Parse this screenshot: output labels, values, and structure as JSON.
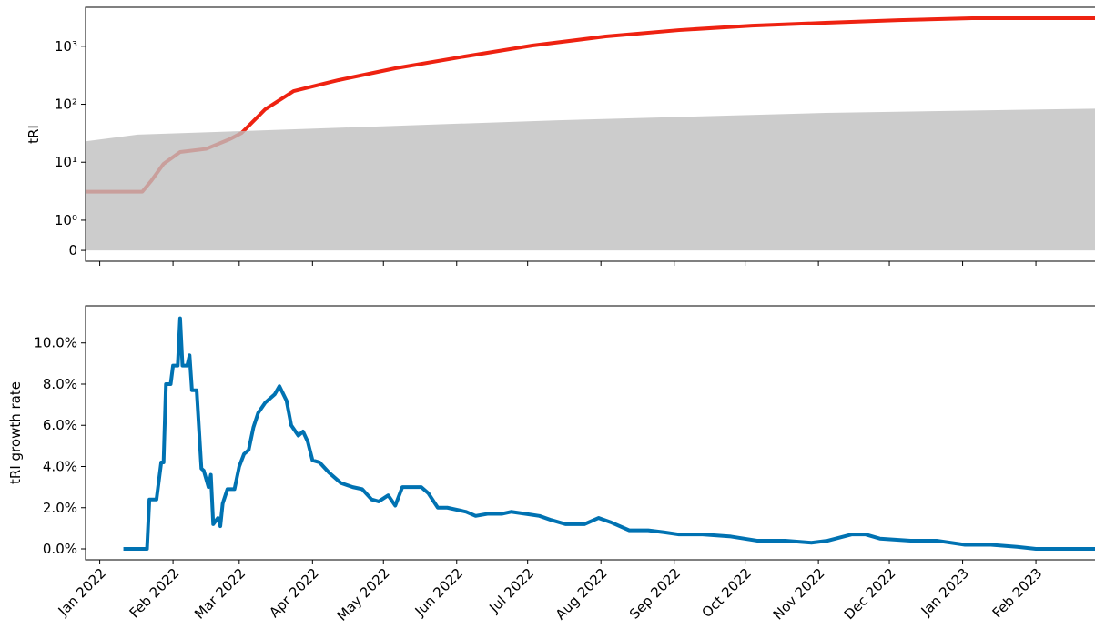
{
  "chart_data": [
    {
      "type": "line",
      "ylabel": "tRI",
      "yscale": "symlog",
      "xlim": [
        "2021-12-26",
        "2023-02-26"
      ],
      "xticks": [
        "2022-01-01",
        "2022-02-01",
        "2022-03-01",
        "2022-04-01",
        "2022-05-01",
        "2022-06-01",
        "2022-07-01",
        "2022-08-01",
        "2022-09-01",
        "2022-10-01",
        "2022-11-01",
        "2022-12-01",
        "2023-01-01",
        "2023-02-01"
      ],
      "ylim": [
        -0.36,
        4700
      ],
      "yticks": [
        0,
        {
          "value": 1,
          "label": "10⁰"
        },
        {
          "value": 10,
          "label": "10¹"
        },
        {
          "value": 100,
          "label": "10²"
        },
        {
          "value": 1000,
          "label": "10³"
        }
      ],
      "series": [
        {
          "color": "#ee2211",
          "x": [
            "2021-12-26",
            "2022-01-19",
            "2022-01-23",
            "2022-01-28",
            "2022-02-04",
            "2022-02-15",
            "2022-02-25",
            "2022-03-02",
            "2022-03-12",
            "2022-03-24",
            "2022-04-12",
            "2022-05-06",
            "2022-06-02",
            "2022-07-03",
            "2022-08-03",
            "2022-09-03",
            "2022-10-04",
            "2022-11-04",
            "2022-12-05",
            "2023-01-05",
            "2023-02-26"
          ],
          "values": [
            3.1,
            3.1,
            4.9,
            9.4,
            15,
            17,
            25,
            32,
            82,
            169,
            261,
            417,
            643,
            1030,
            1476,
            1900,
            2275,
            2540,
            2820,
            3040,
            3040
          ]
        },
        {
          "color": "#bfbfbf",
          "alpha": 0.8,
          "fill": true,
          "x": [
            "2021-12-26",
            "2022-01-17",
            "2022-03-16",
            "2022-07-14",
            "2022-11-04",
            "2023-02-26"
          ],
          "values": [
            23,
            30,
            36,
            53,
            71,
            84
          ]
        }
      ]
    },
    {
      "type": "line",
      "ylabel": "tRI growth rate",
      "xlim": [
        "2021-12-26",
        "2023-02-26"
      ],
      "xticks": [
        {
          "value": "2022-01-01",
          "label": "Jan 2022"
        },
        {
          "value": "2022-02-01",
          "label": "Feb 2022"
        },
        {
          "value": "2022-03-01",
          "label": "Mar 2022"
        },
        {
          "value": "2022-04-01",
          "label": "Apr 2022"
        },
        {
          "value": "2022-05-01",
          "label": "May 2022"
        },
        {
          "value": "2022-06-01",
          "label": "Jun 2022"
        },
        {
          "value": "2022-07-01",
          "label": "Jul 2022"
        },
        {
          "value": "2022-08-01",
          "label": "Aug 2022"
        },
        {
          "value": "2022-09-01",
          "label": "Sep 2022"
        },
        {
          "value": "2022-10-01",
          "label": "Oct 2022"
        },
        {
          "value": "2022-11-01",
          "label": "Nov 2022"
        },
        {
          "value": "2022-12-01",
          "label": "Dec 2022"
        },
        {
          "value": "2023-01-01",
          "label": "Jan 2023"
        },
        {
          "value": "2023-02-01",
          "label": "Feb 2023"
        }
      ],
      "ylim": [
        -0.53,
        11.8
      ],
      "yticks": [
        {
          "value": 0,
          "label": "0.0%"
        },
        {
          "value": 2,
          "label": "2.0%"
        },
        {
          "value": 4,
          "label": "4.0%"
        },
        {
          "value": 6,
          "label": "6.0%"
        },
        {
          "value": 8,
          "label": "8.0%"
        },
        {
          "value": 10,
          "label": "10.0%"
        }
      ],
      "series": [
        {
          "color": "#0072b2",
          "x": [
            "2022-01-11",
            "2022-01-21",
            "2022-01-22",
            "2022-01-25",
            "2022-01-27",
            "2022-01-28",
            "2022-01-29",
            "2022-01-31",
            "2022-02-01",
            "2022-02-03",
            "2022-02-04",
            "2022-02-05",
            "2022-02-07",
            "2022-02-08",
            "2022-02-09",
            "2022-02-11",
            "2022-02-13",
            "2022-02-14",
            "2022-02-16",
            "2022-02-17",
            "2022-02-18",
            "2022-02-20",
            "2022-02-21",
            "2022-02-22",
            "2022-02-24",
            "2022-02-27",
            "2022-03-01",
            "2022-03-03",
            "2022-03-05",
            "2022-03-07",
            "2022-03-09",
            "2022-03-12",
            "2022-03-16",
            "2022-03-18",
            "2022-03-21",
            "2022-03-23",
            "2022-03-26",
            "2022-03-28",
            "2022-03-30",
            "2022-04-01",
            "2022-04-04",
            "2022-04-08",
            "2022-04-13",
            "2022-04-18",
            "2022-04-22",
            "2022-04-26",
            "2022-04-29",
            "2022-05-03",
            "2022-05-06",
            "2022-05-09",
            "2022-05-13",
            "2022-05-17",
            "2022-05-20",
            "2022-05-24",
            "2022-05-28",
            "2022-06-05",
            "2022-06-09",
            "2022-06-14",
            "2022-06-20",
            "2022-06-24",
            "2022-06-30",
            "2022-07-06",
            "2022-07-11",
            "2022-07-17",
            "2022-07-25",
            "2022-07-31",
            "2022-08-05",
            "2022-08-13",
            "2022-08-21",
            "2022-08-28",
            "2022-09-03",
            "2022-09-13",
            "2022-09-25",
            "2022-10-06",
            "2022-10-18",
            "2022-10-29",
            "2022-11-05",
            "2022-11-15",
            "2022-11-21",
            "2022-11-27",
            "2022-12-10",
            "2022-12-21",
            "2023-01-02",
            "2023-01-13",
            "2023-01-24",
            "2023-02-01",
            "2023-02-26"
          ],
          "values": [
            0,
            0,
            2.4,
            2.4,
            4.2,
            4.2,
            8.0,
            8.0,
            8.9,
            8.9,
            11.2,
            8.9,
            8.9,
            9.4,
            7.7,
            7.7,
            3.9,
            3.8,
            3.0,
            3.6,
            1.2,
            1.5,
            1.1,
            2.2,
            2.9,
            2.9,
            4.0,
            4.6,
            4.8,
            5.9,
            6.6,
            7.1,
            7.5,
            7.9,
            7.2,
            6.0,
            5.5,
            5.7,
            5.2,
            4.3,
            4.2,
            3.7,
            3.2,
            3.0,
            2.9,
            2.4,
            2.3,
            2.6,
            2.1,
            3.0,
            3.0,
            3.0,
            2.7,
            2.0,
            2.0,
            1.8,
            1.6,
            1.7,
            1.7,
            1.8,
            1.7,
            1.6,
            1.4,
            1.2,
            1.2,
            1.5,
            1.3,
            0.9,
            0.9,
            0.8,
            0.7,
            0.7,
            0.6,
            0.4,
            0.4,
            0.3,
            0.4,
            0.7,
            0.7,
            0.5,
            0.4,
            0.4,
            0.2,
            0.2,
            0.1,
            0,
            0
          ]
        }
      ]
    }
  ]
}
